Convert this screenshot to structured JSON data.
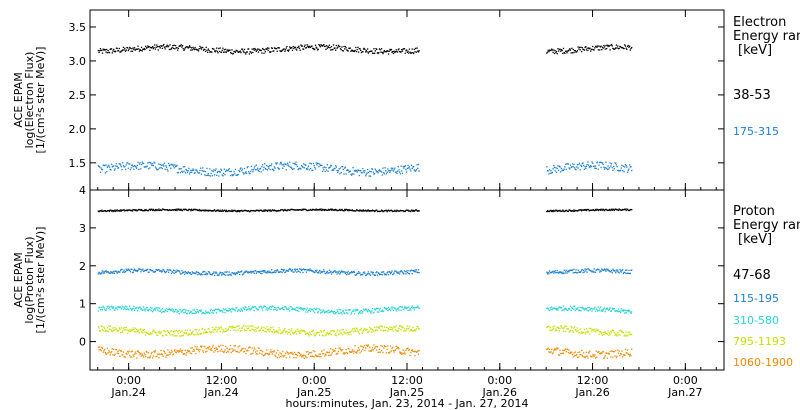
{
  "figure": {
    "xaxis_title": "hours:minutes, Jan. 23, 2014 - Jan. 27, 2014",
    "x_ticks": [
      {
        "time": "0:00",
        "date": "Jan.24",
        "hour": 0
      },
      {
        "time": "12:00",
        "date": "Jan.24",
        "hour": 12
      },
      {
        "time": "0:00",
        "date": "Jan.25",
        "hour": 24
      },
      {
        "time": "12:00",
        "date": "Jan.25",
        "hour": 36
      },
      {
        "time": "0:00",
        "date": "Jan.26",
        "hour": 48
      },
      {
        "time": "12:00",
        "date": "Jan.26",
        "hour": 60
      },
      {
        "time": "0:00",
        "date": "Jan.27",
        "hour": 72
      }
    ],
    "x_range_hours": [
      -5,
      77
    ],
    "data_gaps_hours": [
      [
        37.5,
        54
      ]
    ]
  },
  "chart_data": [
    {
      "type": "scatter",
      "panel": "electron",
      "ylabel": [
        "ACE EPAM",
        "log(Electron Flux)",
        "[1/(cm²s ster MeV)]"
      ],
      "ylim": [
        1.1,
        3.75
      ],
      "y_ticks": [
        1.5,
        2.0,
        2.5,
        3.0,
        3.5
      ],
      "legend_title": [
        "Electron",
        "Energy ran",
        "[keV]"
      ],
      "series": [
        {
          "name": "38-53",
          "color": "#000000",
          "baseline": 3.18,
          "noise": 0.04,
          "segments": [
            [
              -4,
              37.5
            ],
            [
              54,
              65
            ]
          ]
        },
        {
          "name": "175-315",
          "color": "#1a7fd4",
          "baseline": 1.42,
          "noise": 0.06,
          "segments": [
            [
              -4,
              37.5
            ],
            [
              54,
              65
            ]
          ]
        }
      ]
    },
    {
      "type": "scatter",
      "panel": "proton",
      "ylabel": [
        "ACE EPAM",
        "log(Proton Flux)",
        "[1/(cm²s ster MeV)]"
      ],
      "ylim": [
        -0.75,
        4.0
      ],
      "y_ticks": [
        0,
        1,
        2,
        3,
        4
      ],
      "legend_title": [
        "Proton",
        "Energy ran",
        "[keV]"
      ],
      "series": [
        {
          "name": "47-68",
          "color": "#000000",
          "baseline": 3.48,
          "noise": 0.02,
          "segments": [
            [
              -4,
              37.5
            ],
            [
              54,
              65
            ]
          ]
        },
        {
          "name": "115-195",
          "color": "#1a7fd4",
          "baseline": 1.85,
          "noise": 0.05,
          "segments": [
            [
              -4,
              37.5
            ],
            [
              54,
              65
            ]
          ]
        },
        {
          "name": "310-580",
          "color": "#22d4d4",
          "baseline": 0.85,
          "noise": 0.06,
          "segments": [
            [
              -4,
              37.5
            ],
            [
              54,
              65
            ]
          ]
        },
        {
          "name": "795-1193",
          "color": "#c6e000",
          "baseline": 0.3,
          "noise": 0.08,
          "segments": [
            [
              -4,
              37.5
            ],
            [
              54,
              65
            ]
          ]
        },
        {
          "name": "1060-1900",
          "color": "#f08a00",
          "baseline": -0.25,
          "noise": 0.1,
          "segments": [
            [
              -4,
              37.5
            ],
            [
              54,
              65
            ]
          ]
        }
      ]
    }
  ]
}
